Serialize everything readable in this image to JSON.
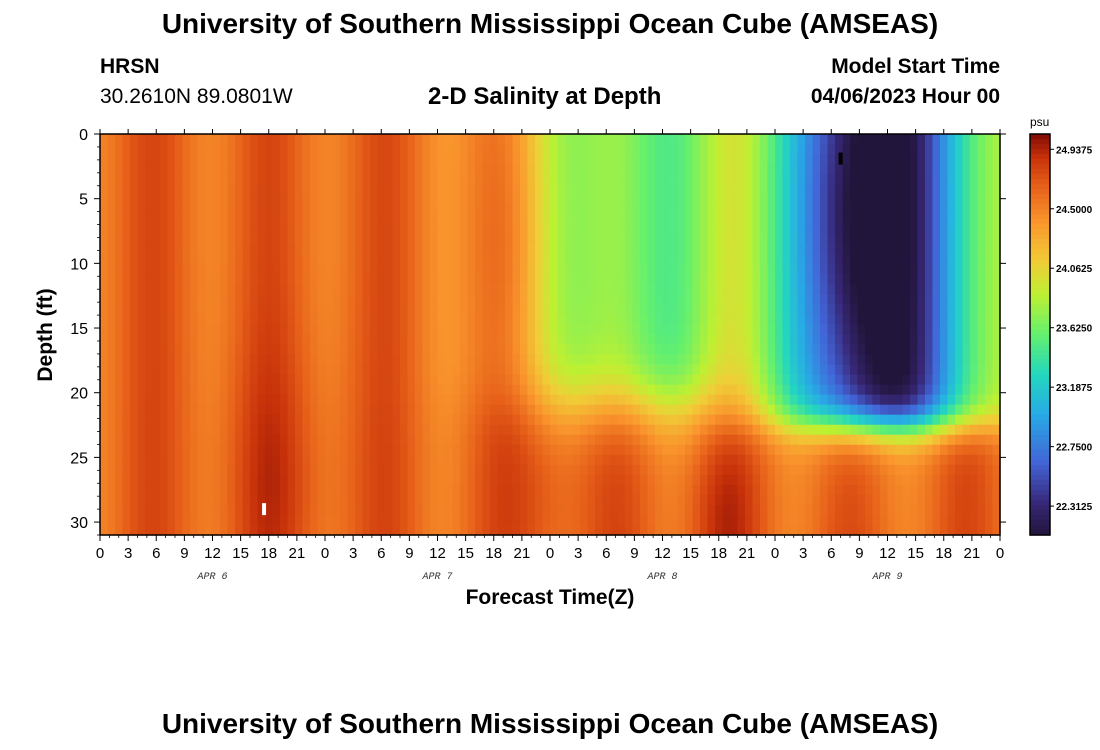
{
  "header": {
    "title": "University of Southern Mississippi Ocean Cube (AMSEAS)",
    "station": "HRSN",
    "coordinates": "30.2610N  89.0801W",
    "subtitle": "2-D Salinity at Depth",
    "model_start_label": "Model Start Time",
    "model_start_value": "04/06/2023 Hour 00"
  },
  "footer": {
    "title": "University of Southern Mississippi Ocean Cube (AMSEAS)"
  },
  "chart_data": {
    "type": "heatmap",
    "title": "2-D Salinity at Depth",
    "xlabel": "Forecast Time(Z)",
    "ylabel": "Depth (ft)",
    "x_range_hours": [
      0,
      96
    ],
    "y_range_ft": [
      0,
      31
    ],
    "y_reversed": true,
    "x_tick_labels": [
      "0",
      "3",
      "6",
      "9",
      "12",
      "15",
      "18",
      "21",
      "0",
      "3",
      "6",
      "9",
      "12",
      "15",
      "18",
      "21",
      "0",
      "3",
      "6",
      "9",
      "12",
      "15",
      "18",
      "21",
      "0",
      "3",
      "6",
      "9",
      "12",
      "15",
      "18",
      "21",
      "0"
    ],
    "x_tick_step_hours": 3,
    "day_labels": [
      {
        "label": "APR 6",
        "hour": 12
      },
      {
        "label": "APR 7",
        "hour": 36
      },
      {
        "label": "APR 8",
        "hour": 60
      },
      {
        "label": "APR 9",
        "hour": 84
      }
    ],
    "y_ticks": [
      0,
      5,
      10,
      15,
      20,
      25,
      30
    ],
    "colorbar": {
      "units": "psu",
      "min": 22.1,
      "max": 25.05,
      "tick_values": [
        24.9375,
        24.5,
        24.0625,
        23.625,
        23.1875,
        22.75,
        22.3125
      ],
      "tick_labels": [
        "24.9375",
        "24.5000",
        "24.0625",
        "23.6250",
        "23.1875",
        "22.7500",
        "22.3125"
      ]
    },
    "markers": [
      {
        "hour": 17.5,
        "depth_ft": 29.0,
        "color": "#ffffff"
      },
      {
        "hour": 79.0,
        "depth_ft": 1.9,
        "color": "#000000"
      }
    ]
  }
}
